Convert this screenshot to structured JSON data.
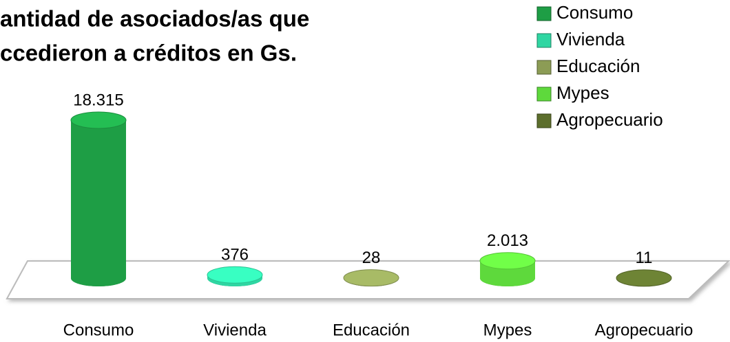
{
  "chart_data": {
    "type": "bar3d",
    "title": [
      "antidad de asociados/as que",
      "ccedieron a  créditos en Gs."
    ],
    "categories": [
      "Consumo",
      "Vivienda",
      "Educación",
      "Mypes",
      "Agropecuario"
    ],
    "values": [
      18315,
      376,
      28,
      2013,
      11
    ],
    "value_labels": [
      "18.315",
      "376",
      "28",
      "2.013",
      "11"
    ],
    "colors": [
      "#1e9e45",
      "#2fd6a2",
      "#8c9c55",
      "#5ed93c",
      "#5c6e2c"
    ],
    "legend": "top-right"
  }
}
